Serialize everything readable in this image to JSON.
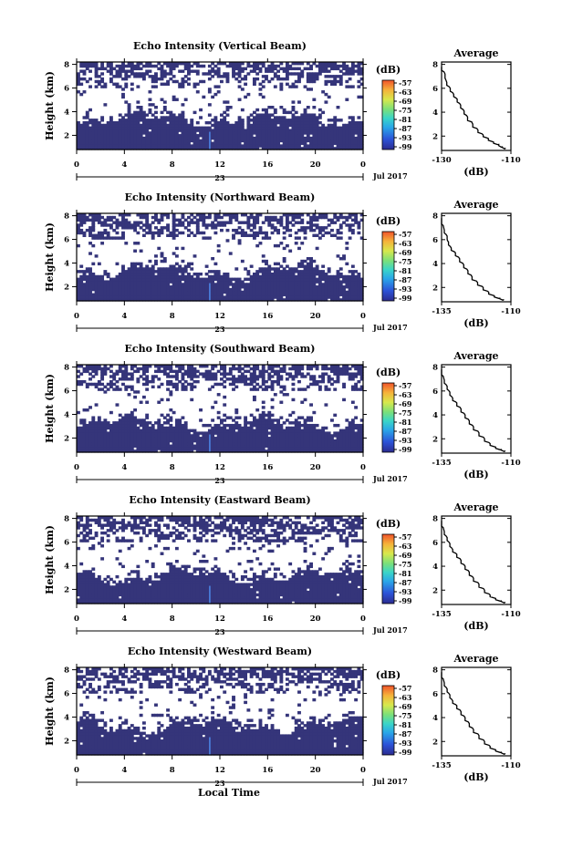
{
  "chart_data": [
    {
      "type": "heatmap",
      "title": "Echo Intensity (Vertical Beam)",
      "ylabel": "Height (km)",
      "x_ticks": [
        "0",
        "4",
        "8",
        "12",
        "16",
        "20",
        "0"
      ],
      "xlim": [
        0,
        24
      ],
      "y_ticks": [
        "2",
        "4",
        "6",
        "8"
      ],
      "ylim": [
        0.8,
        8.2
      ],
      "date_marker": "23",
      "date_label": "Jul 2017",
      "colorbar": {
        "unit": "(dB)",
        "ticks": [
          "-57",
          "-63",
          "-69",
          "-75",
          "-81",
          "-87",
          "-93",
          "-99"
        ]
      },
      "average_profile": {
        "title": "Average",
        "xlabel": "(dB)",
        "x_ticks": [
          "-130",
          "-110"
        ],
        "y_ticks": [
          "2",
          "4",
          "6",
          "8"
        ],
        "xlim": [
          -130,
          -110
        ],
        "ylim": [
          0.8,
          8.2
        ],
        "x": [
          -130,
          -129,
          -128.5,
          -127.5,
          -126.5,
          -125.5,
          -124.5,
          -123.5,
          -122.5,
          -121,
          -119.5,
          -118,
          -116.5,
          -115,
          -113.5,
          -112.5,
          -111.5
        ],
        "y": [
          7.8,
          7.2,
          6.5,
          6.0,
          5.5,
          5.1,
          4.6,
          4.1,
          3.6,
          3.0,
          2.5,
          2.1,
          1.8,
          1.5,
          1.3,
          1.1,
          1.0
        ]
      },
      "seed": 11,
      "bottom": 3.3
    },
    {
      "type": "heatmap",
      "title": "Echo Intensity (Northward Beam)",
      "ylabel": "Height (km)",
      "x_ticks": [
        "0",
        "4",
        "8",
        "12",
        "16",
        "20",
        "0"
      ],
      "xlim": [
        0,
        24
      ],
      "y_ticks": [
        "2",
        "4",
        "6",
        "8"
      ],
      "ylim": [
        0.8,
        8.2
      ],
      "date_marker": "23",
      "date_label": "Jul 2017",
      "colorbar": {
        "unit": "(dB)",
        "ticks": [
          "-57",
          "-63",
          "-69",
          "-75",
          "-81",
          "-87",
          "-93",
          "-99"
        ]
      },
      "average_profile": {
        "title": "Average",
        "xlabel": "(dB)",
        "x_ticks": [
          "-135",
          "-110"
        ],
        "y_ticks": [
          "2",
          "4",
          "6",
          "8"
        ],
        "xlim": [
          -135,
          -110
        ],
        "ylim": [
          0.8,
          8.2
        ],
        "x": [
          -135,
          -134,
          -133,
          -132.5,
          -131.5,
          -130,
          -128.5,
          -127,
          -125.5,
          -124,
          -122,
          -120,
          -118,
          -116,
          -114,
          -112.5
        ],
        "y": [
          7.8,
          6.8,
          6.3,
          5.8,
          5.3,
          4.9,
          4.4,
          3.9,
          3.4,
          2.9,
          2.4,
          2.0,
          1.6,
          1.3,
          1.1,
          1.0
        ]
      },
      "seed": 23,
      "bottom": 3.2
    },
    {
      "type": "heatmap",
      "title": "Echo Intensity (Southward Beam)",
      "ylabel": "Height (km)",
      "x_ticks": [
        "0",
        "4",
        "8",
        "12",
        "16",
        "20",
        "0"
      ],
      "xlim": [
        0,
        24
      ],
      "y_ticks": [
        "2",
        "4",
        "6",
        "8"
      ],
      "ylim": [
        0.8,
        8.2
      ],
      "date_marker": "23",
      "date_label": "Jul 2017",
      "colorbar": {
        "unit": "(dB)",
        "ticks": [
          "-57",
          "-63",
          "-69",
          "-75",
          "-81",
          "-87",
          "-93",
          "-99"
        ]
      },
      "average_profile": {
        "title": "Average",
        "xlabel": "(dB)",
        "x_ticks": [
          "-135",
          "-110"
        ],
        "y_ticks": [
          "2",
          "4",
          "6",
          "8"
        ],
        "xlim": [
          -135,
          -110
        ],
        "ylim": [
          0.8,
          8.2
        ],
        "x": [
          -135,
          -134,
          -133,
          -132,
          -131,
          -129.5,
          -128,
          -126.5,
          -125,
          -123.5,
          -121.5,
          -119.5,
          -117.5,
          -115.5,
          -113.5,
          -112
        ],
        "y": [
          7.8,
          6.9,
          6.4,
          5.9,
          5.4,
          5.0,
          4.5,
          4.0,
          3.5,
          3.0,
          2.5,
          2.0,
          1.6,
          1.3,
          1.1,
          1.0
        ]
      },
      "seed": 37,
      "bottom": 3.1
    },
    {
      "type": "heatmap",
      "title": "Echo Intensity (Eastward Beam)",
      "ylabel": "Height (km)",
      "x_ticks": [
        "0",
        "4",
        "8",
        "12",
        "16",
        "20",
        "0"
      ],
      "xlim": [
        0,
        24
      ],
      "y_ticks": [
        "2",
        "4",
        "6",
        "8"
      ],
      "ylim": [
        0.8,
        8.2
      ],
      "date_marker": "23",
      "date_label": "Jul 2017",
      "colorbar": {
        "unit": "(dB)",
        "ticks": [
          "-57",
          "-63",
          "-69",
          "-75",
          "-81",
          "-87",
          "-93",
          "-99"
        ]
      },
      "average_profile": {
        "title": "Average",
        "xlabel": "(dB)",
        "x_ticks": [
          "-135",
          "-110"
        ],
        "y_ticks": [
          "2",
          "4",
          "6",
          "8"
        ],
        "xlim": [
          -135,
          -110
        ],
        "ylim": [
          0.8,
          8.2
        ],
        "x": [
          -135,
          -134,
          -133,
          -132,
          -131,
          -129.5,
          -128,
          -126.5,
          -125,
          -123.5,
          -121.5,
          -119.5,
          -117.5,
          -115.5,
          -113.5,
          -112
        ],
        "y": [
          7.8,
          6.9,
          6.4,
          5.9,
          5.4,
          5.0,
          4.5,
          4.0,
          3.5,
          3.0,
          2.5,
          2.0,
          1.6,
          1.3,
          1.1,
          1.0
        ]
      },
      "seed": 53,
      "bottom": 3.1
    },
    {
      "type": "heatmap",
      "title": "Echo Intensity (Westward Beam)",
      "ylabel": "Height (km)",
      "x_ticks": [
        "0",
        "4",
        "8",
        "12",
        "16",
        "20",
        "0"
      ],
      "xlim": [
        0,
        24
      ],
      "y_ticks": [
        "2",
        "4",
        "6",
        "8"
      ],
      "ylim": [
        0.8,
        8.2
      ],
      "date_marker": "23",
      "date_label": "Jul 2017",
      "xlabel": "Local Time",
      "colorbar": {
        "unit": "(dB)",
        "ticks": [
          "-57",
          "-63",
          "-69",
          "-75",
          "-81",
          "-87",
          "-93",
          "-99"
        ]
      },
      "average_profile": {
        "title": "Average",
        "xlabel": "(dB)",
        "x_ticks": [
          "-135",
          "-110"
        ],
        "y_ticks": [
          "2",
          "4",
          "6",
          "8"
        ],
        "xlim": [
          -135,
          -110
        ],
        "ylim": [
          0.8,
          8.2
        ],
        "x": [
          -135,
          -134,
          -133,
          -132,
          -131,
          -129.5,
          -128,
          -126.5,
          -125,
          -123.5,
          -121.5,
          -119.5,
          -117.5,
          -115.5,
          -113.5,
          -112
        ],
        "y": [
          7.8,
          6.9,
          6.4,
          5.9,
          5.4,
          5.0,
          4.5,
          4.0,
          3.5,
          3.0,
          2.5,
          2.0,
          1.6,
          1.3,
          1.1,
          1.0
        ]
      },
      "seed": 71,
      "bottom": 3.2
    }
  ],
  "colors": {
    "background_echo": "#35357a",
    "colorbar_stops": [
      "#2b2b8f",
      "#2c53d8",
      "#2aa6e8",
      "#3ad5c8",
      "#7be07a",
      "#d7e84c",
      "#f5b23a",
      "#f0532a"
    ]
  }
}
